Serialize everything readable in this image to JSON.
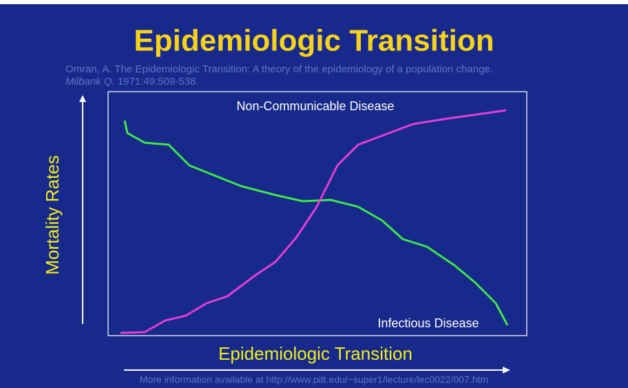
{
  "header": {
    "title": "Epidemiologic Transition",
    "citation": {
      "line1": "Omran, A.  The Epidemiologic Transition: A theory of the epidemiology of a population change.",
      "journal": "Milbank Q.",
      "details": " 1971:49:509-538."
    }
  },
  "plot": {
    "upper_label": "Non-Communicable Disease",
    "lower_label": "Infectious Disease",
    "y_label": "Mortality Rates",
    "x_label": "Epidemiologic Transition"
  },
  "footer": "More information available at http://www.pitt.edu/~super1/lecture/lec0022/007.htm"
}
